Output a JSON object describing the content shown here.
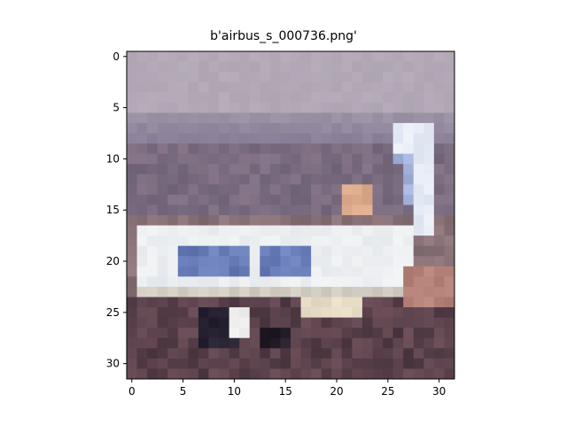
{
  "figure": {
    "title": "b'airbus_s_000736.png'"
  },
  "axes": {
    "x_ticks": [
      "0",
      "5",
      "10",
      "15",
      "20",
      "25",
      "30"
    ],
    "y_ticks": [
      "0",
      "5",
      "10",
      "15",
      "20",
      "25",
      "30"
    ],
    "xlim": [
      -0.5,
      31.5
    ],
    "ylim": [
      31.5,
      -0.5
    ]
  },
  "image": {
    "description_in_pixels": "32x32 low-resolution image of a white and blue passenger jet over a grey sky and dark ground",
    "grid_size": 32
  }
}
